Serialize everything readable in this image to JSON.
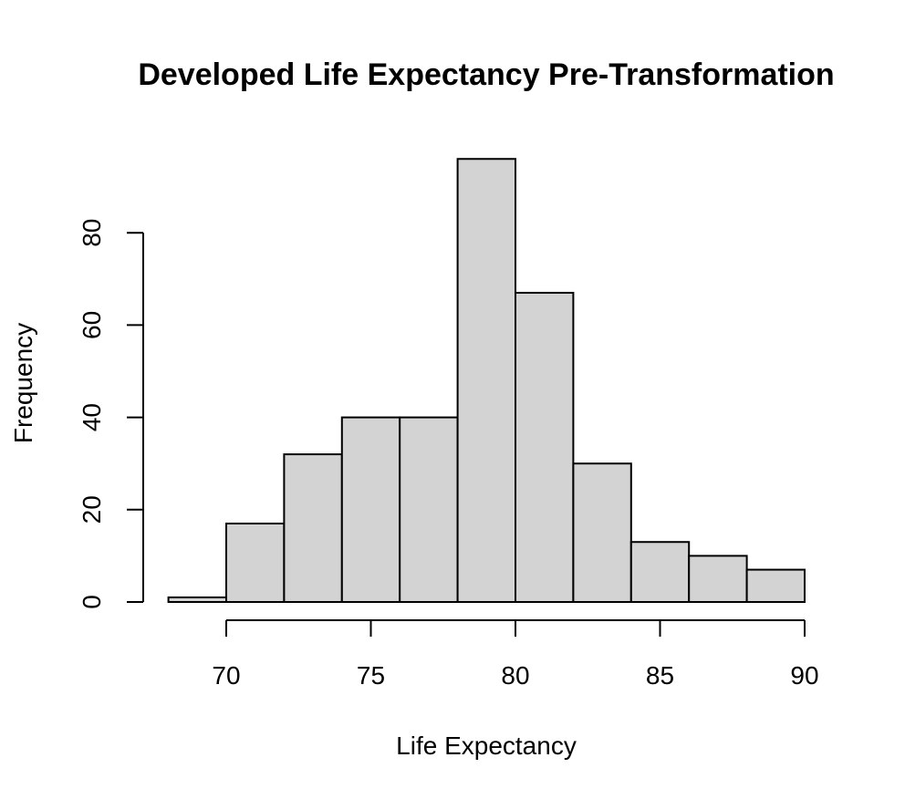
{
  "chart_data": {
    "type": "bar",
    "subtype": "histogram",
    "title": "Developed Life Expectancy Pre-Transformation",
    "xlabel": "Life Expectancy",
    "ylabel": "Frequency",
    "bins": [
      {
        "x0": 68,
        "x1": 70,
        "value": 1
      },
      {
        "x0": 70,
        "x1": 72,
        "value": 17
      },
      {
        "x0": 72,
        "x1": 74,
        "value": 32
      },
      {
        "x0": 74,
        "x1": 76,
        "value": 40
      },
      {
        "x0": 76,
        "x1": 78,
        "value": 40
      },
      {
        "x0": 78,
        "x1": 80,
        "value": 96
      },
      {
        "x0": 80,
        "x1": 82,
        "value": 67
      },
      {
        "x0": 82,
        "x1": 84,
        "value": 30
      },
      {
        "x0": 84,
        "x1": 86,
        "value": 13
      },
      {
        "x0": 86,
        "x1": 88,
        "value": 10
      },
      {
        "x0": 88,
        "x1": 90,
        "value": 7
      }
    ],
    "x_ticks": [
      70,
      75,
      80,
      85,
      90
    ],
    "y_ticks": [
      0,
      20,
      40,
      60,
      80
    ],
    "xlim": [
      68,
      90
    ],
    "ylim": [
      0,
      96
    ],
    "grid": false,
    "bar_fill": "#d3d3d3",
    "bar_stroke": "#000000"
  }
}
